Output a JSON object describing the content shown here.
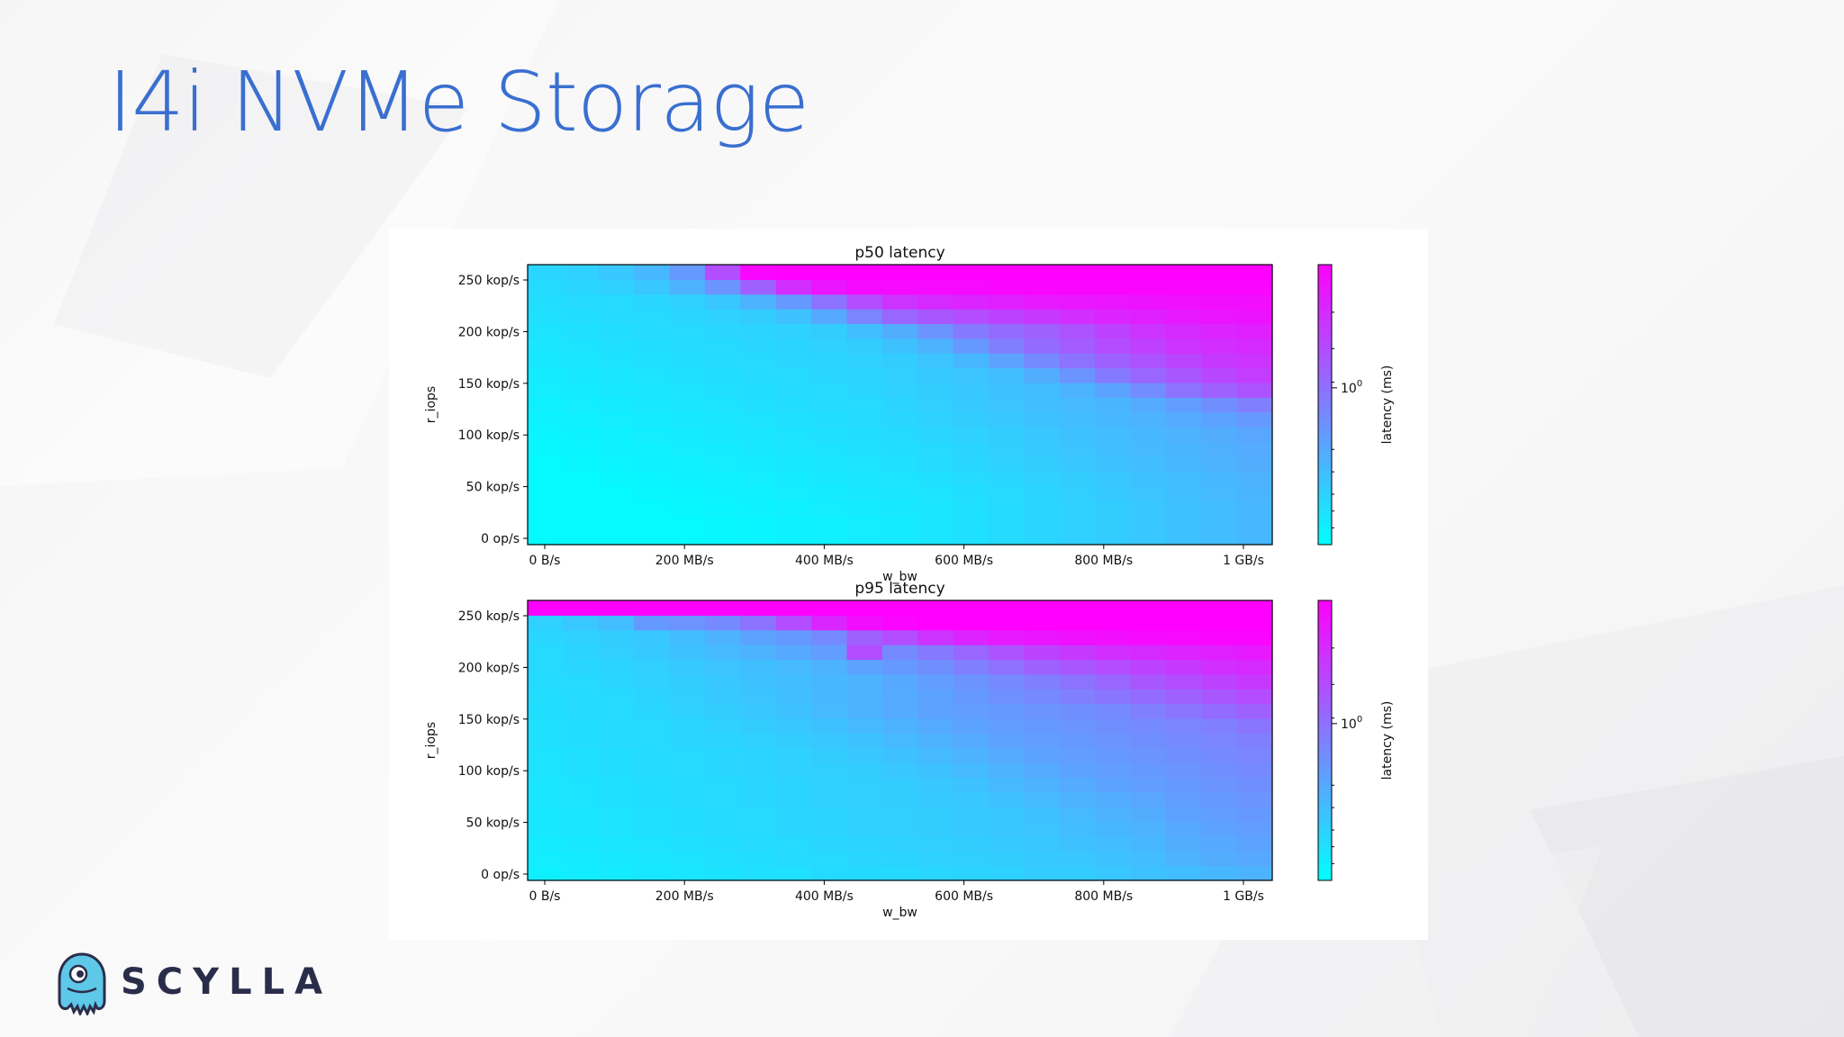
{
  "slide": {
    "title": "I4i NVMe Storage",
    "brand": "SCYLLA",
    "brand_color": "#2a2d4a",
    "title_color": "#3a6fd0"
  },
  "chart_data": [
    {
      "type": "heatmap",
      "title": "p50 latency",
      "xlabel": "w_bw",
      "ylabel": "r_iops",
      "xticks": [
        "0 B/s",
        "200 MB/s",
        "400 MB/s",
        "600 MB/s",
        "800 MB/s",
        "1 GB/s"
      ],
      "yticks": [
        "0 op/s",
        "50 kop/s",
        "100 kop/s",
        "150 kop/s",
        "200 kop/s",
        "250 kop/s"
      ],
      "colorbar": {
        "label": "latency (ms)",
        "tick": "10",
        "tick_exponent": "0",
        "scale": "log",
        "cmap": "cool"
      },
      "grid": {
        "cols": 21,
        "rows": 19
      },
      "color_values": [
        [
          0.02,
          0.02,
          0.02,
          0.02,
          0.02,
          0.03,
          0.04,
          0.05,
          0.06,
          0.07,
          0.08,
          0.1,
          0.12,
          0.14,
          0.16,
          0.18,
          0.2,
          0.22,
          0.24,
          0.26,
          0.28
        ],
        [
          0.02,
          0.02,
          0.02,
          0.02,
          0.02,
          0.03,
          0.04,
          0.05,
          0.06,
          0.07,
          0.08,
          0.1,
          0.12,
          0.14,
          0.16,
          0.18,
          0.2,
          0.22,
          0.24,
          0.26,
          0.28
        ],
        [
          0.02,
          0.02,
          0.02,
          0.02,
          0.03,
          0.04,
          0.05,
          0.06,
          0.07,
          0.08,
          0.09,
          0.1,
          0.12,
          0.14,
          0.16,
          0.18,
          0.2,
          0.22,
          0.24,
          0.26,
          0.28
        ],
        [
          0.02,
          0.02,
          0.02,
          0.03,
          0.04,
          0.05,
          0.06,
          0.07,
          0.08,
          0.09,
          0.1,
          0.11,
          0.13,
          0.15,
          0.17,
          0.19,
          0.21,
          0.23,
          0.25,
          0.27,
          0.29
        ],
        [
          0.02,
          0.02,
          0.03,
          0.04,
          0.05,
          0.06,
          0.07,
          0.08,
          0.09,
          0.1,
          0.11,
          0.12,
          0.14,
          0.16,
          0.18,
          0.2,
          0.22,
          0.24,
          0.26,
          0.28,
          0.3
        ],
        [
          0.02,
          0.03,
          0.04,
          0.05,
          0.06,
          0.07,
          0.08,
          0.09,
          0.1,
          0.11,
          0.12,
          0.14,
          0.16,
          0.18,
          0.2,
          0.22,
          0.24,
          0.26,
          0.28,
          0.3,
          0.32
        ],
        [
          0.03,
          0.04,
          0.05,
          0.06,
          0.07,
          0.08,
          0.09,
          0.1,
          0.11,
          0.12,
          0.13,
          0.15,
          0.17,
          0.19,
          0.21,
          0.23,
          0.25,
          0.27,
          0.29,
          0.31,
          0.33
        ],
        [
          0.04,
          0.05,
          0.06,
          0.07,
          0.08,
          0.09,
          0.1,
          0.11,
          0.12,
          0.13,
          0.14,
          0.16,
          0.18,
          0.2,
          0.22,
          0.24,
          0.26,
          0.28,
          0.3,
          0.32,
          0.35
        ],
        [
          0.05,
          0.06,
          0.07,
          0.08,
          0.09,
          0.1,
          0.11,
          0.12,
          0.13,
          0.14,
          0.16,
          0.18,
          0.2,
          0.22,
          0.24,
          0.26,
          0.28,
          0.3,
          0.33,
          0.36,
          0.4
        ],
        [
          0.06,
          0.07,
          0.08,
          0.09,
          0.1,
          0.11,
          0.12,
          0.13,
          0.14,
          0.15,
          0.17,
          0.19,
          0.21,
          0.23,
          0.25,
          0.27,
          0.29,
          0.33,
          0.38,
          0.44,
          0.5
        ],
        [
          0.07,
          0.08,
          0.09,
          0.1,
          0.11,
          0.12,
          0.13,
          0.14,
          0.15,
          0.16,
          0.18,
          0.2,
          0.22,
          0.24,
          0.26,
          0.3,
          0.36,
          0.45,
          0.55,
          0.62,
          0.68
        ],
        [
          0.08,
          0.09,
          0.1,
          0.11,
          0.12,
          0.13,
          0.14,
          0.15,
          0.16,
          0.17,
          0.19,
          0.21,
          0.23,
          0.26,
          0.32,
          0.42,
          0.52,
          0.6,
          0.66,
          0.72,
          0.76
        ],
        [
          0.09,
          0.1,
          0.11,
          0.12,
          0.13,
          0.14,
          0.15,
          0.16,
          0.17,
          0.18,
          0.2,
          0.23,
          0.28,
          0.36,
          0.46,
          0.55,
          0.62,
          0.68,
          0.73,
          0.78,
          0.8
        ],
        [
          0.1,
          0.11,
          0.12,
          0.13,
          0.14,
          0.15,
          0.16,
          0.17,
          0.18,
          0.2,
          0.24,
          0.3,
          0.4,
          0.5,
          0.58,
          0.64,
          0.7,
          0.75,
          0.8,
          0.82,
          0.84
        ],
        [
          0.11,
          0.12,
          0.13,
          0.14,
          0.15,
          0.16,
          0.17,
          0.18,
          0.2,
          0.25,
          0.32,
          0.42,
          0.52,
          0.58,
          0.62,
          0.68,
          0.74,
          0.8,
          0.84,
          0.86,
          0.88
        ],
        [
          0.12,
          0.13,
          0.14,
          0.15,
          0.16,
          0.18,
          0.2,
          0.24,
          0.34,
          0.48,
          0.6,
          0.66,
          0.7,
          0.74,
          0.78,
          0.82,
          0.86,
          0.88,
          0.9,
          0.92,
          0.93
        ],
        [
          0.13,
          0.14,
          0.15,
          0.16,
          0.18,
          0.22,
          0.3,
          0.4,
          0.55,
          0.7,
          0.8,
          0.84,
          0.86,
          0.88,
          0.9,
          0.91,
          0.92,
          0.93,
          0.94,
          0.95,
          0.95
        ],
        [
          0.14,
          0.16,
          0.18,
          0.22,
          0.3,
          0.42,
          0.62,
          0.82,
          0.92,
          0.96,
          0.97,
          0.97,
          0.97,
          0.98,
          0.98,
          0.98,
          0.98,
          0.98,
          0.98,
          0.98,
          0.98
        ],
        [
          0.16,
          0.18,
          0.22,
          0.28,
          0.4,
          0.7,
          0.98,
          1.0,
          1.0,
          1.0,
          1.0,
          1.0,
          1.0,
          1.0,
          1.0,
          1.0,
          1.0,
          1.0,
          1.0,
          1.0,
          1.0
        ]
      ]
    },
    {
      "type": "heatmap",
      "title": "p95 latency",
      "xlabel": "w_bw",
      "ylabel": "r_iops",
      "xticks": [
        "0 B/s",
        "200 MB/s",
        "400 MB/s",
        "600 MB/s",
        "800 MB/s",
        "1 GB/s"
      ],
      "yticks": [
        "0 op/s",
        "50 kop/s",
        "100 kop/s",
        "150 kop/s",
        "200 kop/s",
        "250 kop/s"
      ],
      "colorbar": {
        "label": "latency (ms)",
        "tick": "10",
        "tick_exponent": "0",
        "scale": "log",
        "cmap": "cool"
      },
      "grid": {
        "cols": 21,
        "rows": 19
      },
      "color_values": [
        [
          0.06,
          0.07,
          0.08,
          0.09,
          0.1,
          0.11,
          0.12,
          0.12,
          0.14,
          0.14,
          0.15,
          0.16,
          0.17,
          0.18,
          0.2,
          0.2,
          0.22,
          0.24,
          0.26,
          0.28,
          0.3
        ],
        [
          0.07,
          0.08,
          0.09,
          0.1,
          0.11,
          0.12,
          0.13,
          0.14,
          0.15,
          0.16,
          0.17,
          0.18,
          0.19,
          0.2,
          0.21,
          0.22,
          0.24,
          0.26,
          0.3,
          0.32,
          0.34
        ],
        [
          0.08,
          0.09,
          0.1,
          0.11,
          0.12,
          0.13,
          0.14,
          0.15,
          0.16,
          0.17,
          0.18,
          0.19,
          0.2,
          0.21,
          0.22,
          0.24,
          0.26,
          0.28,
          0.32,
          0.34,
          0.36
        ],
        [
          0.09,
          0.1,
          0.11,
          0.12,
          0.13,
          0.14,
          0.15,
          0.16,
          0.17,
          0.18,
          0.19,
          0.2,
          0.21,
          0.22,
          0.23,
          0.26,
          0.28,
          0.3,
          0.34,
          0.36,
          0.38
        ],
        [
          0.09,
          0.1,
          0.11,
          0.12,
          0.13,
          0.14,
          0.15,
          0.16,
          0.17,
          0.18,
          0.19,
          0.2,
          0.21,
          0.22,
          0.24,
          0.27,
          0.3,
          0.32,
          0.36,
          0.38,
          0.4
        ],
        [
          0.1,
          0.11,
          0.12,
          0.13,
          0.14,
          0.15,
          0.16,
          0.17,
          0.18,
          0.19,
          0.2,
          0.21,
          0.22,
          0.24,
          0.27,
          0.3,
          0.32,
          0.35,
          0.38,
          0.4,
          0.42
        ],
        [
          0.1,
          0.11,
          0.12,
          0.13,
          0.14,
          0.15,
          0.16,
          0.17,
          0.18,
          0.19,
          0.2,
          0.22,
          0.24,
          0.27,
          0.3,
          0.33,
          0.36,
          0.38,
          0.4,
          0.42,
          0.44
        ],
        [
          0.11,
          0.12,
          0.13,
          0.14,
          0.15,
          0.16,
          0.17,
          0.18,
          0.19,
          0.2,
          0.22,
          0.24,
          0.27,
          0.3,
          0.33,
          0.36,
          0.38,
          0.4,
          0.42,
          0.44,
          0.46
        ],
        [
          0.11,
          0.12,
          0.13,
          0.14,
          0.15,
          0.16,
          0.17,
          0.18,
          0.2,
          0.22,
          0.24,
          0.27,
          0.3,
          0.33,
          0.36,
          0.38,
          0.4,
          0.42,
          0.44,
          0.46,
          0.48
        ],
        [
          0.12,
          0.13,
          0.14,
          0.15,
          0.16,
          0.17,
          0.18,
          0.2,
          0.22,
          0.24,
          0.27,
          0.3,
          0.33,
          0.36,
          0.38,
          0.4,
          0.42,
          0.44,
          0.46,
          0.48,
          0.5
        ],
        [
          0.12,
          0.13,
          0.14,
          0.15,
          0.16,
          0.18,
          0.2,
          0.22,
          0.24,
          0.27,
          0.3,
          0.33,
          0.36,
          0.38,
          0.4,
          0.42,
          0.44,
          0.46,
          0.48,
          0.5,
          0.54
        ],
        [
          0.13,
          0.14,
          0.15,
          0.16,
          0.18,
          0.2,
          0.22,
          0.24,
          0.27,
          0.3,
          0.33,
          0.36,
          0.38,
          0.4,
          0.42,
          0.44,
          0.46,
          0.5,
          0.54,
          0.58,
          0.62
        ],
        [
          0.13,
          0.14,
          0.15,
          0.17,
          0.19,
          0.21,
          0.23,
          0.25,
          0.28,
          0.3,
          0.33,
          0.36,
          0.4,
          0.43,
          0.46,
          0.5,
          0.54,
          0.58,
          0.62,
          0.66,
          0.7
        ],
        [
          0.14,
          0.15,
          0.16,
          0.18,
          0.2,
          0.22,
          0.24,
          0.26,
          0.28,
          0.3,
          0.34,
          0.38,
          0.42,
          0.46,
          0.5,
          0.55,
          0.6,
          0.66,
          0.7,
          0.74,
          0.78
        ],
        [
          0.15,
          0.16,
          0.17,
          0.19,
          0.21,
          0.23,
          0.25,
          0.27,
          0.3,
          0.36,
          0.4,
          0.44,
          0.5,
          0.56,
          0.62,
          0.66,
          0.7,
          0.74,
          0.78,
          0.82,
          0.84
        ],
        [
          0.15,
          0.17,
          0.19,
          0.21,
          0.24,
          0.27,
          0.3,
          0.34,
          0.38,
          0.7,
          0.46,
          0.52,
          0.6,
          0.68,
          0.74,
          0.78,
          0.82,
          0.84,
          0.86,
          0.88,
          0.9
        ],
        [
          0.16,
          0.18,
          0.2,
          0.22,
          0.26,
          0.3,
          0.36,
          0.4,
          0.46,
          0.62,
          0.7,
          0.8,
          0.86,
          0.9,
          0.92,
          0.94,
          0.95,
          0.96,
          0.97,
          0.98,
          0.98
        ],
        [
          0.18,
          0.22,
          0.26,
          0.4,
          0.42,
          0.46,
          0.55,
          0.7,
          0.85,
          0.95,
          0.98,
          1.0,
          1.0,
          1.0,
          1.0,
          1.0,
          1.0,
          1.0,
          1.0,
          1.0,
          1.0
        ],
        [
          1.0,
          1.0,
          1.0,
          1.0,
          1.0,
          1.0,
          1.0,
          1.0,
          1.0,
          1.0,
          1.0,
          1.0,
          1.0,
          1.0,
          1.0,
          1.0,
          1.0,
          1.0,
          1.0,
          1.0,
          1.0
        ]
      ]
    }
  ]
}
